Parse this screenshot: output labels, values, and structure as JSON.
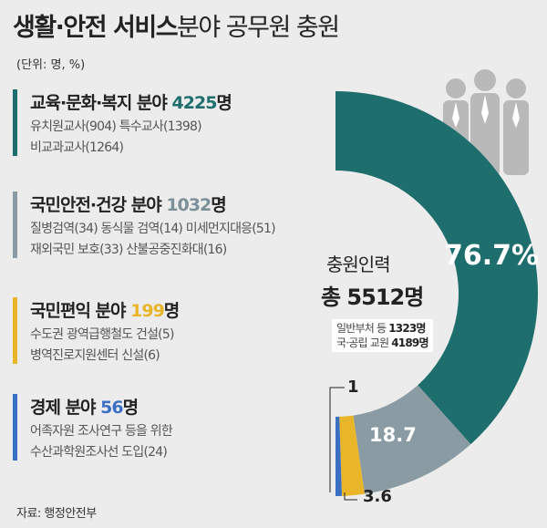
{
  "title": {
    "bold": "생활·안전 서비스",
    "rest": "분야 공무원 충원"
  },
  "unit": "(단위: 명, %)",
  "categories": [
    {
      "name": "교육·문화·복지 분야",
      "count": "4225",
      "suffix": "명",
      "color": "#1f6e6e",
      "lines": [
        "유치원교사(904) 특수교사(1398)",
        "비교과교사(1264)"
      ]
    },
    {
      "name": "국민안전·건강 분야",
      "count": "1032",
      "suffix": "명",
      "color": "#8a9ba3",
      "lines": [
        "질병검역(34) 동식물 검역(14) 미세먼지대응(51)",
        "재외국민 보호(33) 산불공중진화대(16)"
      ]
    },
    {
      "name": "국민편익 분야",
      "count": "199",
      "suffix": "명",
      "color": "#e8b628",
      "lines": [
        "수도권 광역급행철도 건설(5)",
        "병역진로지원센터 신설(6)"
      ]
    },
    {
      "name": "경제 분야",
      "count": "56",
      "suffix": "명",
      "color": "#3a6fc4",
      "lines": [
        "어족자원 조사연구 등을 위한",
        "수산과학원조사선 도입(24)"
      ]
    }
  ],
  "center": {
    "label": "충원인력",
    "total": "총 5512명",
    "breakdown": [
      {
        "label": "일반부처 등",
        "value": "1323명"
      },
      {
        "label": "국·공립 교원",
        "value": "4189명"
      }
    ]
  },
  "chart_data": {
    "type": "pie",
    "categories": [
      "교육·문화·복지",
      "국민안전·건강",
      "국민편익",
      "경제"
    ],
    "values": [
      76.7,
      18.7,
      3.6,
      1
    ],
    "labels": [
      "76.7%",
      "18.7",
      "3.6",
      "1"
    ],
    "colors": [
      "#1f6e6e",
      "#8a9ba3",
      "#e8b628",
      "#3a6fc4"
    ]
  },
  "source": "자료: 행정안전부"
}
